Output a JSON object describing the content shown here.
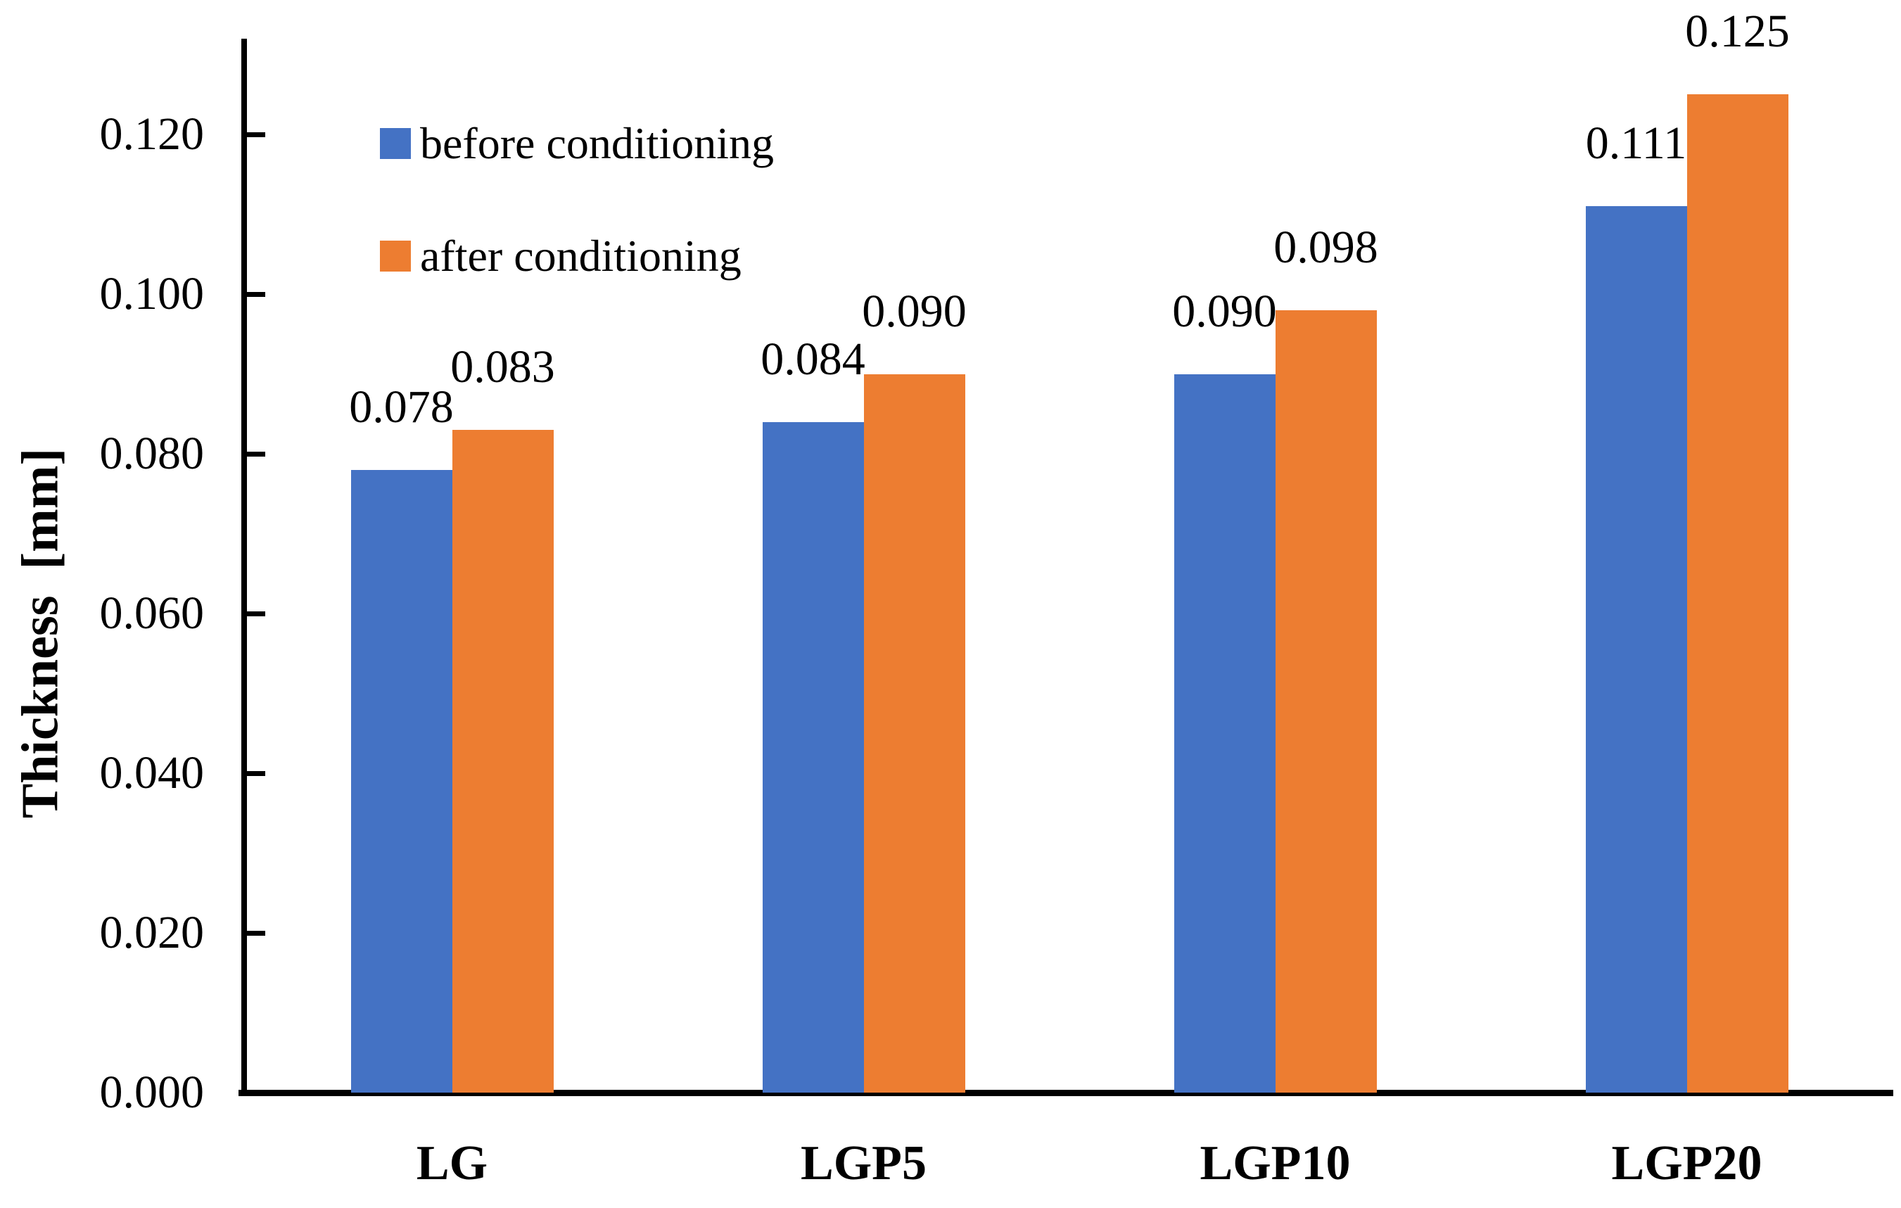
{
  "chart_data": {
    "type": "bar",
    "title": "",
    "categories": [
      "LG",
      "LGP5",
      "LGP10",
      "LGP20"
    ],
    "series": [
      {
        "name": "before conditioning",
        "color": "#4472C4",
        "values": [
          0.078,
          0.084,
          0.09,
          0.111
        ],
        "labels": [
          "0.078",
          "0.084",
          "0.090",
          "0.111"
        ]
      },
      {
        "name": "after conditioning",
        "color": "#ED7D31",
        "values": [
          0.083,
          0.09,
          0.098,
          0.125
        ],
        "labels": [
          "0.083",
          "0.090",
          "0.098",
          "0.125"
        ]
      }
    ],
    "xlabel": "",
    "ylabel": "Thickness  [mm]",
    "ylim": [
      0,
      0.132
    ],
    "yticks": {
      "values": [
        0,
        0.02,
        0.04,
        0.06,
        0.08,
        0.1,
        0.12
      ],
      "labels": [
        "0.000",
        "0.020",
        "0.040",
        "0.060",
        "0.080",
        "0.100",
        "0.120"
      ]
    },
    "grid": false,
    "legend_position": "inside-top-left",
    "axis_color": "#000000",
    "text_color": "#000000",
    "background_color": "#FFFFFF"
  }
}
